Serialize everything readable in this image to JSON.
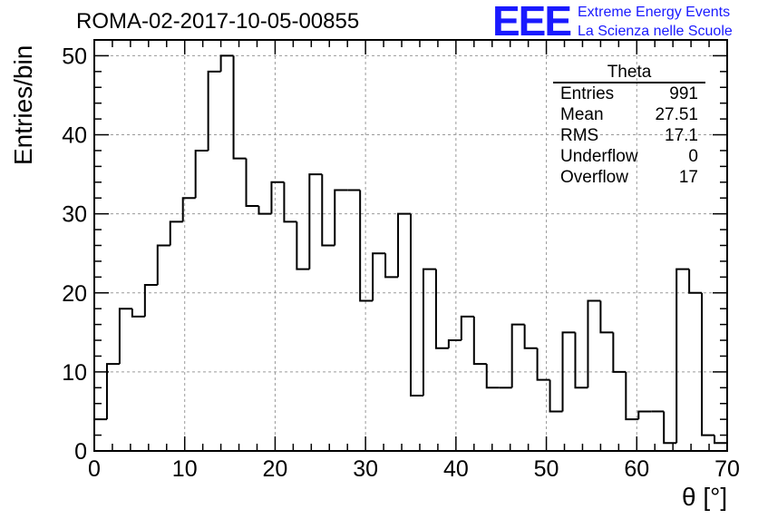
{
  "chart_data": {
    "type": "bar",
    "title": "ROMA-02-2017-10-05-00855",
    "xlabel": "θ [°]",
    "ylabel": "Entries/bin",
    "xlim": [
      0,
      70
    ],
    "ylim": [
      0,
      52
    ],
    "grid": true,
    "x_ticks": [
      0,
      10,
      20,
      30,
      40,
      50,
      60,
      70
    ],
    "y_ticks": [
      0,
      10,
      20,
      30,
      40,
      50
    ],
    "bin_width": 1.4,
    "values": [
      4,
      11,
      18,
      17,
      21,
      26,
      29,
      32,
      38,
      48,
      50,
      37,
      31,
      30,
      34,
      29,
      23,
      35,
      26,
      33,
      33,
      19,
      25,
      22,
      30,
      7,
      23,
      13,
      14,
      17,
      11,
      8,
      8,
      16,
      13,
      9,
      5,
      15,
      8,
      19,
      15,
      10,
      4,
      5,
      5,
      1,
      23,
      20,
      2,
      1
    ]
  },
  "logo": {
    "mark": "EEE",
    "line1": "Extreme Energy Events",
    "line2": "La Scienza nelle Scuole"
  },
  "stats": {
    "title": "Theta",
    "rows": [
      {
        "label": "Entries",
        "value": "991"
      },
      {
        "label": "Mean",
        "value": "27.51"
      },
      {
        "label": "RMS",
        "value": "17.1"
      },
      {
        "label": "Underflow",
        "value": "0"
      },
      {
        "label": "Overflow",
        "value": "17"
      }
    ]
  }
}
